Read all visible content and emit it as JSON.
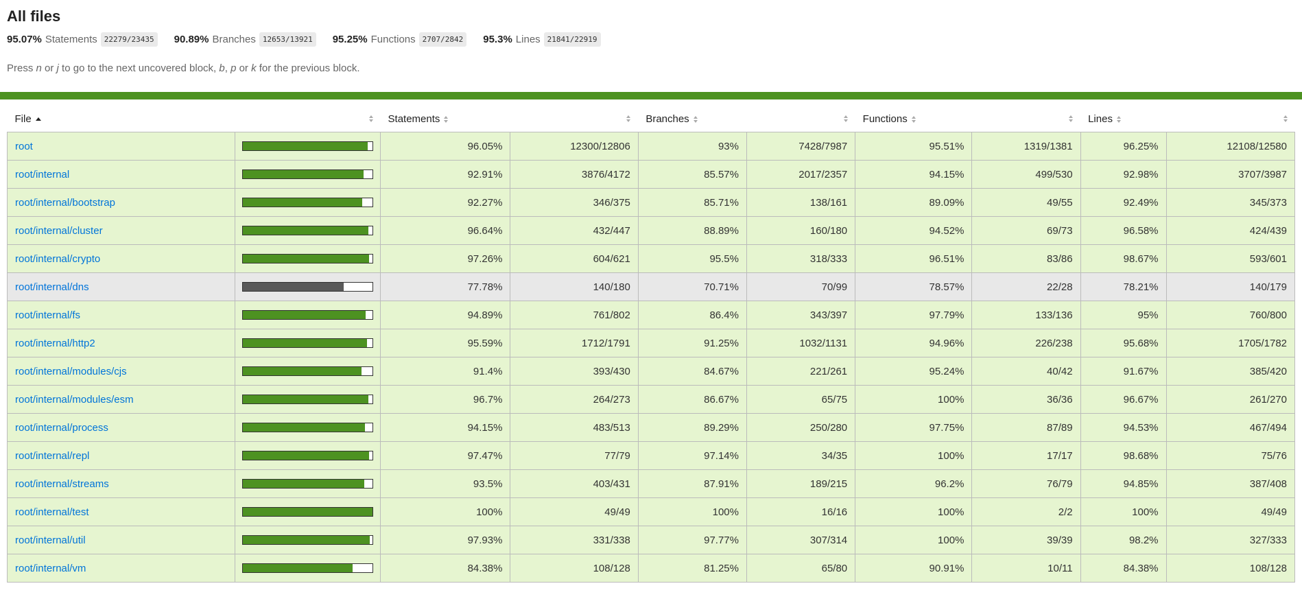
{
  "title": "All files",
  "summary": [
    {
      "pct": "95.07%",
      "label": "Statements",
      "fraction": "22279/23435"
    },
    {
      "pct": "90.89%",
      "label": "Branches",
      "fraction": "12653/13921"
    },
    {
      "pct": "95.25%",
      "label": "Functions",
      "fraction": "2707/2842"
    },
    {
      "pct": "95.3%",
      "label": "Lines",
      "fraction": "21841/22919"
    }
  ],
  "hint": {
    "press": "Press ",
    "k1": "n",
    "or1": " or ",
    "k2": "j",
    "mid": " to go to the next uncovered block, ",
    "k3": "b",
    "comma": ", ",
    "k4": "p",
    "or2": " or ",
    "k5": "k",
    "end": " for the previous block."
  },
  "colors": {
    "high_bg": "#e6f5d0",
    "medium_bg": "#e8e8e8",
    "high_fill": "#4d9221",
    "medium_fill": "#595959",
    "link": "#0074d9"
  },
  "table": {
    "headers": {
      "file": "File",
      "statements": "Statements",
      "branches": "Branches",
      "functions": "Functions",
      "lines": "Lines"
    },
    "rows": [
      {
        "file": "root",
        "level": "high",
        "coverage": 96.05,
        "stmt_pct": "96.05%",
        "stmt_frac": "12300/12806",
        "br_pct": "93%",
        "br_frac": "7428/7987",
        "fn_pct": "95.51%",
        "fn_frac": "1319/1381",
        "ln_pct": "96.25%",
        "ln_frac": "12108/12580"
      },
      {
        "file": "root/internal",
        "level": "high",
        "coverage": 92.91,
        "stmt_pct": "92.91%",
        "stmt_frac": "3876/4172",
        "br_pct": "85.57%",
        "br_frac": "2017/2357",
        "fn_pct": "94.15%",
        "fn_frac": "499/530",
        "ln_pct": "92.98%",
        "ln_frac": "3707/3987"
      },
      {
        "file": "root/internal/bootstrap",
        "level": "high",
        "coverage": 92.27,
        "stmt_pct": "92.27%",
        "stmt_frac": "346/375",
        "br_pct": "85.71%",
        "br_frac": "138/161",
        "fn_pct": "89.09%",
        "fn_frac": "49/55",
        "ln_pct": "92.49%",
        "ln_frac": "345/373"
      },
      {
        "file": "root/internal/cluster",
        "level": "high",
        "coverage": 96.64,
        "stmt_pct": "96.64%",
        "stmt_frac": "432/447",
        "br_pct": "88.89%",
        "br_frac": "160/180",
        "fn_pct": "94.52%",
        "fn_frac": "69/73",
        "ln_pct": "96.58%",
        "ln_frac": "424/439"
      },
      {
        "file": "root/internal/crypto",
        "level": "high",
        "coverage": 97.26,
        "stmt_pct": "97.26%",
        "stmt_frac": "604/621",
        "br_pct": "95.5%",
        "br_frac": "318/333",
        "fn_pct": "96.51%",
        "fn_frac": "83/86",
        "ln_pct": "98.67%",
        "ln_frac": "593/601"
      },
      {
        "file": "root/internal/dns",
        "level": "medium",
        "coverage": 77.78,
        "stmt_pct": "77.78%",
        "stmt_frac": "140/180",
        "br_pct": "70.71%",
        "br_frac": "70/99",
        "fn_pct": "78.57%",
        "fn_frac": "22/28",
        "ln_pct": "78.21%",
        "ln_frac": "140/179"
      },
      {
        "file": "root/internal/fs",
        "level": "high",
        "coverage": 94.89,
        "stmt_pct": "94.89%",
        "stmt_frac": "761/802",
        "br_pct": "86.4%",
        "br_frac": "343/397",
        "fn_pct": "97.79%",
        "fn_frac": "133/136",
        "ln_pct": "95%",
        "ln_frac": "760/800"
      },
      {
        "file": "root/internal/http2",
        "level": "high",
        "coverage": 95.59,
        "stmt_pct": "95.59%",
        "stmt_frac": "1712/1791",
        "br_pct": "91.25%",
        "br_frac": "1032/1131",
        "fn_pct": "94.96%",
        "fn_frac": "226/238",
        "ln_pct": "95.68%",
        "ln_frac": "1705/1782"
      },
      {
        "file": "root/internal/modules/cjs",
        "level": "high",
        "coverage": 91.4,
        "stmt_pct": "91.4%",
        "stmt_frac": "393/430",
        "br_pct": "84.67%",
        "br_frac": "221/261",
        "fn_pct": "95.24%",
        "fn_frac": "40/42",
        "ln_pct": "91.67%",
        "ln_frac": "385/420"
      },
      {
        "file": "root/internal/modules/esm",
        "level": "high",
        "coverage": 96.7,
        "stmt_pct": "96.7%",
        "stmt_frac": "264/273",
        "br_pct": "86.67%",
        "br_frac": "65/75",
        "fn_pct": "100%",
        "fn_frac": "36/36",
        "ln_pct": "96.67%",
        "ln_frac": "261/270"
      },
      {
        "file": "root/internal/process",
        "level": "high",
        "coverage": 94.15,
        "stmt_pct": "94.15%",
        "stmt_frac": "483/513",
        "br_pct": "89.29%",
        "br_frac": "250/280",
        "fn_pct": "97.75%",
        "fn_frac": "87/89",
        "ln_pct": "94.53%",
        "ln_frac": "467/494"
      },
      {
        "file": "root/internal/repl",
        "level": "high",
        "coverage": 97.47,
        "stmt_pct": "97.47%",
        "stmt_frac": "77/79",
        "br_pct": "97.14%",
        "br_frac": "34/35",
        "fn_pct": "100%",
        "fn_frac": "17/17",
        "ln_pct": "98.68%",
        "ln_frac": "75/76"
      },
      {
        "file": "root/internal/streams",
        "level": "high",
        "coverage": 93.5,
        "stmt_pct": "93.5%",
        "stmt_frac": "403/431",
        "br_pct": "87.91%",
        "br_frac": "189/215",
        "fn_pct": "96.2%",
        "fn_frac": "76/79",
        "ln_pct": "94.85%",
        "ln_frac": "387/408"
      },
      {
        "file": "root/internal/test",
        "level": "high",
        "coverage": 100,
        "stmt_pct": "100%",
        "stmt_frac": "49/49",
        "br_pct": "100%",
        "br_frac": "16/16",
        "fn_pct": "100%",
        "fn_frac": "2/2",
        "ln_pct": "100%",
        "ln_frac": "49/49"
      },
      {
        "file": "root/internal/util",
        "level": "high",
        "coverage": 97.93,
        "stmt_pct": "97.93%",
        "stmt_frac": "331/338",
        "br_pct": "97.77%",
        "br_frac": "307/314",
        "fn_pct": "100%",
        "fn_frac": "39/39",
        "ln_pct": "98.2%",
        "ln_frac": "327/333"
      },
      {
        "file": "root/internal/vm",
        "level": "high",
        "coverage": 84.38,
        "stmt_pct": "84.38%",
        "stmt_frac": "108/128",
        "br_pct": "81.25%",
        "br_frac": "65/80",
        "fn_pct": "90.91%",
        "fn_frac": "10/11",
        "ln_pct": "84.38%",
        "ln_frac": "108/128"
      }
    ]
  }
}
